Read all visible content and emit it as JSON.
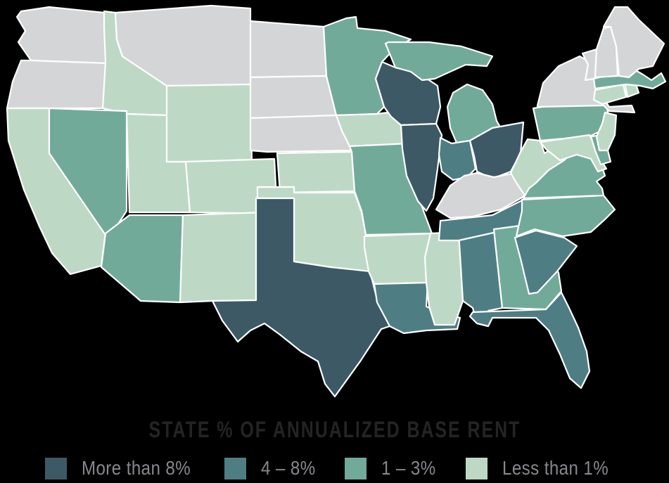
{
  "title": "STATE % OF ANNUALIZED BASE RENT",
  "colors": {
    "background": "#000000",
    "state_border": "#ffffff",
    "no_data_state": "#d3d5d7",
    "title_text": "#262324",
    "legend_text": "#87888d"
  },
  "legend": {
    "items": [
      {
        "label": "More than 8%",
        "color": "#3d5966"
      },
      {
        "label": "4 – 8%",
        "color": "#4e7e83"
      },
      {
        "label": "1 – 3%",
        "color": "#72aa99"
      },
      {
        "label": "Less than 1%",
        "color": "#bdd9c5"
      }
    ]
  },
  "chart_data": {
    "type": "choropleth",
    "region": "United States (contiguous 48 states)",
    "title": "STATE % OF ANNUALIZED BASE RENT",
    "metric": "share of annualized base rent by state",
    "legend_position": "bottom",
    "buckets": [
      {
        "id": "more_than_8",
        "label": "More than 8%",
        "range": [
          8,
          100
        ],
        "color": "#3d5966",
        "states": [
          "TX",
          "IL",
          "OH",
          "WI"
        ]
      },
      {
        "id": "4_to_8",
        "label": "4 – 8%",
        "range": [
          4,
          8
        ],
        "color": "#4e7e83",
        "states": [
          "IN",
          "TN",
          "SC",
          "FL",
          "AL",
          "LA"
        ]
      },
      {
        "id": "1_to_3",
        "label": "1 – 3%",
        "range": [
          1,
          3
        ],
        "color": "#72aa99",
        "states": [
          "MN",
          "MI",
          "PA",
          "MA",
          "VA",
          "NC",
          "GA",
          "MO",
          "NV",
          "AZ",
          "DE"
        ]
      },
      {
        "id": "less_than_1",
        "label": "Less than 1%",
        "range": [
          0,
          1
        ],
        "color": "#bdd9c5",
        "states": [
          "CA",
          "ID",
          "WY",
          "UT",
          "CO",
          "NM",
          "KS",
          "OK",
          "AR",
          "MS",
          "IA",
          "WV",
          "NJ",
          "CT",
          "RI",
          "MD"
        ]
      },
      {
        "id": "no_data",
        "label": "",
        "range": null,
        "color": "#d3d5d7",
        "states": [
          "WA",
          "OR",
          "MT",
          "ND",
          "SD",
          "NE",
          "KY",
          "NY",
          "VT",
          "NH",
          "ME"
        ]
      }
    ]
  }
}
